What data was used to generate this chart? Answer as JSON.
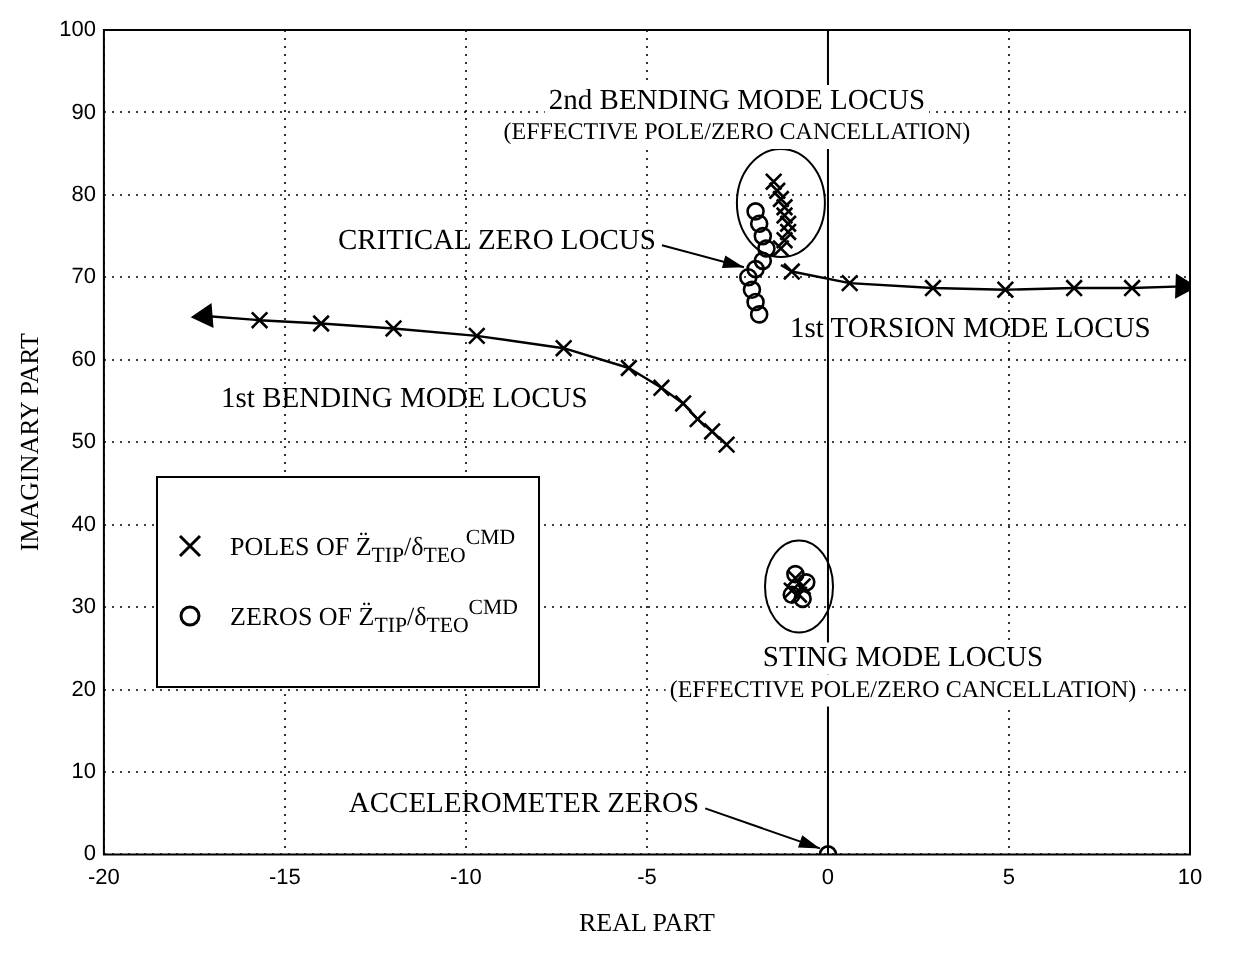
{
  "chart_data": {
    "type": "scatter",
    "xlabel": "REAL PART",
    "ylabel": "IMAGINARY PART",
    "xlim": [
      -20,
      10
    ],
    "xticks": [
      -20,
      -15,
      -10,
      -5,
      0,
      5,
      10
    ],
    "ylim": [
      0,
      100
    ],
    "yticks": [
      0,
      10,
      20,
      30,
      40,
      50,
      60,
      70,
      80,
      90,
      100
    ],
    "grid": true,
    "legend": "left",
    "ref_lines": [
      {
        "axis": "x",
        "value": 0,
        "color": "#000000",
        "line_style": "solid"
      }
    ],
    "series": [
      {
        "name": "POLES OF Z̈$_{TIP}$/δ$_{TEO}$$^{CMD}$",
        "marker": "cross",
        "color": "#000000",
        "x": [
          -15.7,
          -14.0,
          -12.0,
          -9.7,
          -7.3,
          -5.5,
          -4.6,
          -4.0,
          -3.6,
          -3.2,
          -2.8,
          -1.0,
          0.6,
          2.9,
          4.9,
          6.8,
          8.4,
          -1.5,
          -1.4,
          -1.3,
          -1.2,
          -1.2,
          -1.1,
          -1.1,
          -1.2,
          -1.3,
          -0.9,
          -0.7,
          -1.0,
          -0.8
        ],
        "values": [
          64.8,
          64.4,
          63.8,
          62.9,
          61.4,
          59.0,
          56.6,
          54.7,
          52.8,
          51.3,
          49.7,
          70.7,
          69.3,
          68.7,
          68.5,
          68.7,
          68.7,
          81.6,
          80.5,
          79.5,
          78.5,
          77.5,
          76.5,
          75.5,
          74.5,
          73.5,
          33.5,
          32.5,
          32.0,
          31.5
        ]
      },
      {
        "name": "ZEROS OF Z̈$_{TIP}$/δ$_{TEO}$$^{CMD}$",
        "marker": "circle",
        "color": "#000000",
        "x": [
          -2.0,
          -1.9,
          -1.8,
          -1.7,
          -1.8,
          -2.0,
          -2.2,
          -2.1,
          -2.0,
          -1.9,
          -0.9,
          -0.6,
          -1.0,
          -0.7,
          0
        ],
        "values": [
          78,
          76.5,
          75,
          73.5,
          72,
          71,
          70,
          68.5,
          67,
          65.5,
          34,
          33,
          31.5,
          31,
          0
        ]
      },
      {
        "type": "line",
        "marker": "none",
        "color": "#000000",
        "x": [
          -2.8,
          -3.2,
          -3.6,
          -4.0,
          -4.6,
          -5.5,
          -7.3,
          -9.7,
          -12.0,
          -14.0,
          -15.7,
          -17.2
        ],
        "values": [
          49.7,
          51.3,
          52.8,
          54.7,
          56.6,
          59.0,
          61.4,
          62.9,
          63.8,
          64.4,
          64.8,
          65.3
        ]
      },
      {
        "type": "line",
        "marker": "none",
        "color": "#000000",
        "x": [
          -1.3,
          -1.0,
          0.6,
          2.9,
          4.9,
          6.8,
          8.4,
          9.8
        ],
        "values": [
          71.5,
          70.7,
          69.3,
          68.7,
          68.5,
          68.7,
          68.7,
          68.9
        ]
      }
    ],
    "annotations": [
      {
        "text": "2nd BENDING MODE LOCUS",
        "x": -1.3,
        "y": 79
      },
      "(EFFECTIVE POLE/ZERO CANCELLATION)",
      {
        "text": "CRITICAL ZERO LOCUS",
        "x": -2.1,
        "y": 70.5
      },
      {
        "text": "1st TORSION MODE LOCUS",
        "x": 2,
        "y": 69
      },
      {
        "text": "1st BENDING MODE LOCUS",
        "x": -8,
        "y": 62
      },
      {
        "text": "STING MODE LOCUS",
        "x": -0.8,
        "y": 32.5
      },
      "(EFFECTIVE POLE/ZERO CANCELLATION)",
      {
        "text": "ACCELEROMETER ZEROS",
        "x": 0,
        "y": 0
      }
    ]
  }
}
